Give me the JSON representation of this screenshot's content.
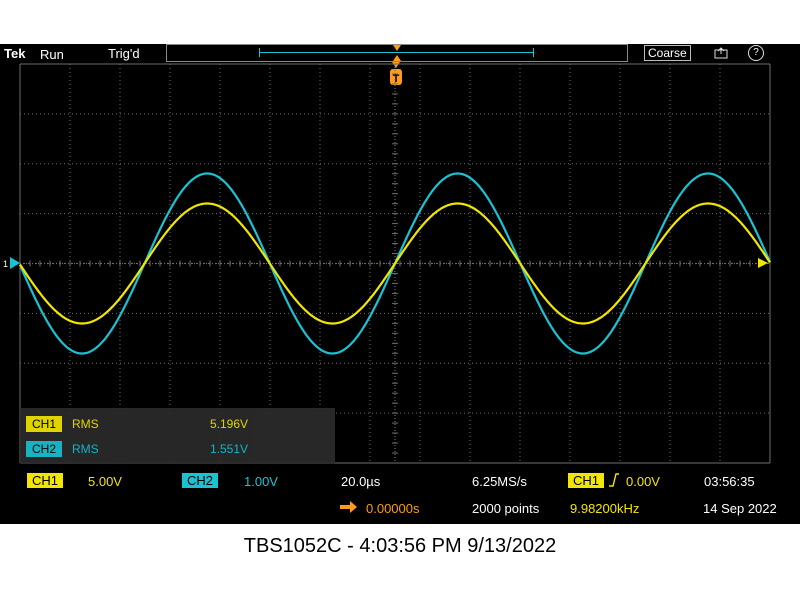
{
  "status_bar": {
    "brand": "Tek",
    "run_state": "Run",
    "trigger_status": "Trig'd",
    "knob_mode": "Coarse",
    "help_label": "?"
  },
  "measurements": [
    {
      "channel": "CH1",
      "type": "RMS",
      "value": "5.196V"
    },
    {
      "channel": "CH2",
      "type": "RMS",
      "value": "1.551V"
    }
  ],
  "readouts": {
    "ch1_label": "CH1",
    "ch1_scale": "5.00V",
    "ch2_label": "CH2",
    "ch2_scale": "1.00V",
    "time_per_div": "20.0µs",
    "sample_rate": "6.25MS/s",
    "record_length": "2000 points",
    "trigger_source": "CH1",
    "trigger_level": "0.00V",
    "trigger_position": "0.00000s",
    "trigger_frequency": "9.98200kHz",
    "time": "03:56:35",
    "date": "14 Sep 2022"
  },
  "caption": "TBS1052C - 4:03:56 PM   9/13/2022",
  "colors": {
    "ch1": "#f2e600",
    "ch2": "#19c3d3",
    "trigger": "#ff9a1a",
    "grid": "#6e6e6e"
  }
}
